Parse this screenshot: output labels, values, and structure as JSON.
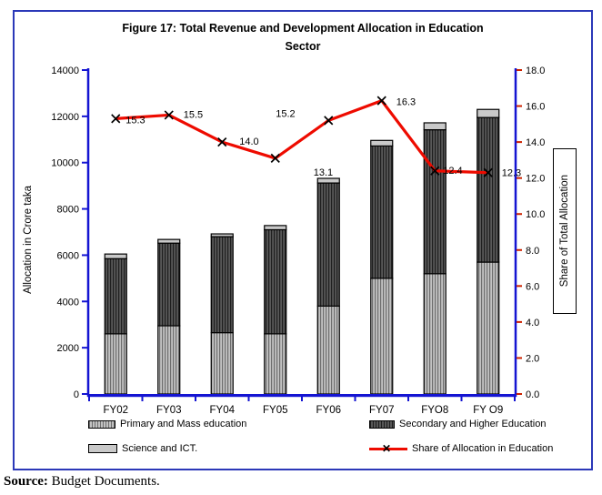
{
  "header": {
    "title_line1": "Figure 17: Total Revenue and Development Allocation in Education",
    "title_line2": "Sector"
  },
  "source": {
    "prefix": "Source:",
    "text": " Budget Documents."
  },
  "legend": {
    "items": [
      {
        "label": "Primary and Mass education",
        "swatch": "striped-light"
      },
      {
        "label": "Secondary and Higher Education",
        "swatch": "striped-dark"
      },
      {
        "label": "Science and ICT.",
        "swatch": "plain-gray"
      },
      {
        "label": "Share of Allocation in Education",
        "swatch": "red-line-x"
      }
    ]
  },
  "colors": {
    "figure_border": "#2b38b8",
    "axis_blue": "#1414d2",
    "right_tick_red": "#cc2200",
    "line_red": "#ee0b00",
    "marker_black": "#000000",
    "bar_primary_base": "#c2c2c2",
    "bar_primary_stripe": "#6e6e6e",
    "bar_secondary_base": "#585858",
    "bar_secondary_stripe": "#1f1f1f",
    "bar_science_fill": "#c9c9c9",
    "bar_border": "#000000",
    "text_black": "#000000"
  },
  "chart_data": {
    "type": "bar",
    "subtype": "stacked-column-with-line",
    "title": "Figure 17: Total Revenue and Development Allocation in Education Sector",
    "categories": [
      "FY02",
      "FY03",
      "FY04",
      "FY05",
      "FY06",
      "FY07",
      "FYO8",
      "FY O9"
    ],
    "bar_series": [
      {
        "name": "Primary and Mass education",
        "values": [
          2600,
          2950,
          2650,
          2600,
          3800,
          5000,
          5200,
          5700
        ]
      },
      {
        "name": "Secondary and Higher Education",
        "values": [
          3250,
          3570,
          4150,
          4500,
          5320,
          5720,
          6220,
          6250
        ]
      },
      {
        "name": "Science and ICT.",
        "values": [
          200,
          160,
          120,
          180,
          200,
          240,
          300,
          350
        ]
      }
    ],
    "bar_totals": [
      6050,
      6680,
      6920,
      7280,
      9320,
      10960,
      11720,
      12300
    ],
    "line_series": {
      "name": "Share of Allocation in Education",
      "values": [
        15.3,
        15.5,
        14.0,
        13.1,
        15.2,
        16.3,
        12.4,
        12.3
      ],
      "labels": [
        "15.3",
        "15.5",
        "14.0",
        "13.1",
        "15.2",
        "16.3",
        "12.4",
        "12.3"
      ]
    },
    "y_left": {
      "label": "Allocation in Crore taka",
      "min": 0,
      "max": 14000,
      "tick_values": [
        0,
        2000,
        4000,
        6000,
        8000,
        10000,
        12000,
        14000
      ],
      "tick_labels": [
        "0",
        "2000",
        "4000",
        "6000",
        "8000",
        "10000",
        "12000",
        "14000"
      ]
    },
    "y_right": {
      "label": "Share of Total Allocation",
      "min": 0,
      "max": 18,
      "tick_values": [
        0,
        2,
        4,
        6,
        8,
        10,
        12,
        14,
        16,
        18
      ],
      "tick_labels": [
        "0.0",
        "2.0",
        "4.0",
        "6.0",
        "8.0",
        "10.0",
        "12.0",
        "14.0",
        "16.0",
        "18.0"
      ]
    },
    "grid": "off",
    "legend_position": "bottom"
  }
}
